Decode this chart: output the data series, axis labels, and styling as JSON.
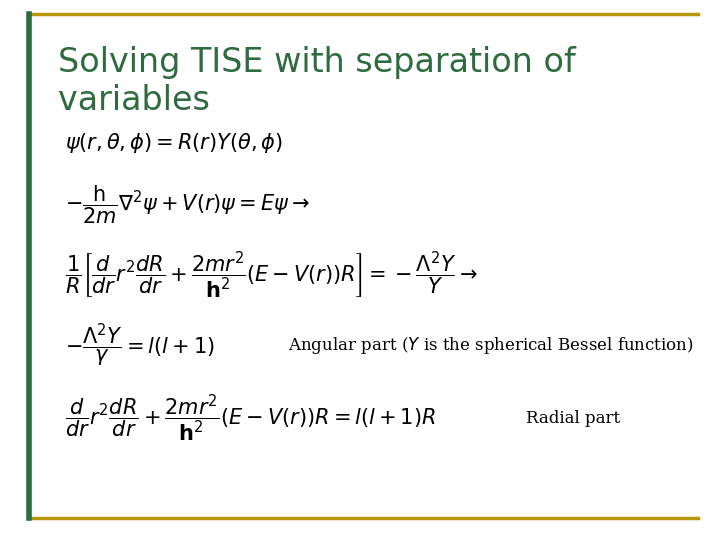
{
  "title_line1": "Solving TISE with separation of",
  "title_line2": "variables",
  "title_color": "#2E6B3E",
  "bg_color": "#FFFFFF",
  "border_color": "#B8960C",
  "border_left_color": "#2E6B3E",
  "eq1": "$\\psi\\left(r,\\theta,\\phi\\right)=R\\left(r\\right)Y\\left(\\theta,\\phi\\right)$",
  "eq2": "$-\\dfrac{\\mathrm{h}}{2m}\\nabla^{2}\\psi+V\\left(r\\right)\\psi=E\\psi\\rightarrow$",
  "eq3": "$\\dfrac{1}{R}\\left[\\dfrac{d}{dr}r^{2}\\dfrac{dR}{dr}+\\dfrac{2mr^{2}}{\\mathbf{h}^{2}}\\left(E-V\\left(r\\right)\\right)R\\right]=-\\dfrac{\\Lambda^{2}Y}{Y}\\rightarrow$",
  "eq4a": "$-\\dfrac{\\Lambda^{2}Y}{\\gamma}=l\\left(l+1\\right)$",
  "eq4b": "Angular part ($Y$ is the spherical Bessel function)",
  "eq5a": "$\\dfrac{d}{dr}r^{2}\\dfrac{dR}{dr}+\\dfrac{2mr^{2}}{\\mathbf{h}^{2}}\\left(E-V\\left(r\\right)\\right)R=l\\left(l+1\\right)R$",
  "eq5b": "Radial part",
  "eq_color": "#000000",
  "eq_fontsize": 15,
  "title_fontsize": 24,
  "small_fontsize": 12
}
